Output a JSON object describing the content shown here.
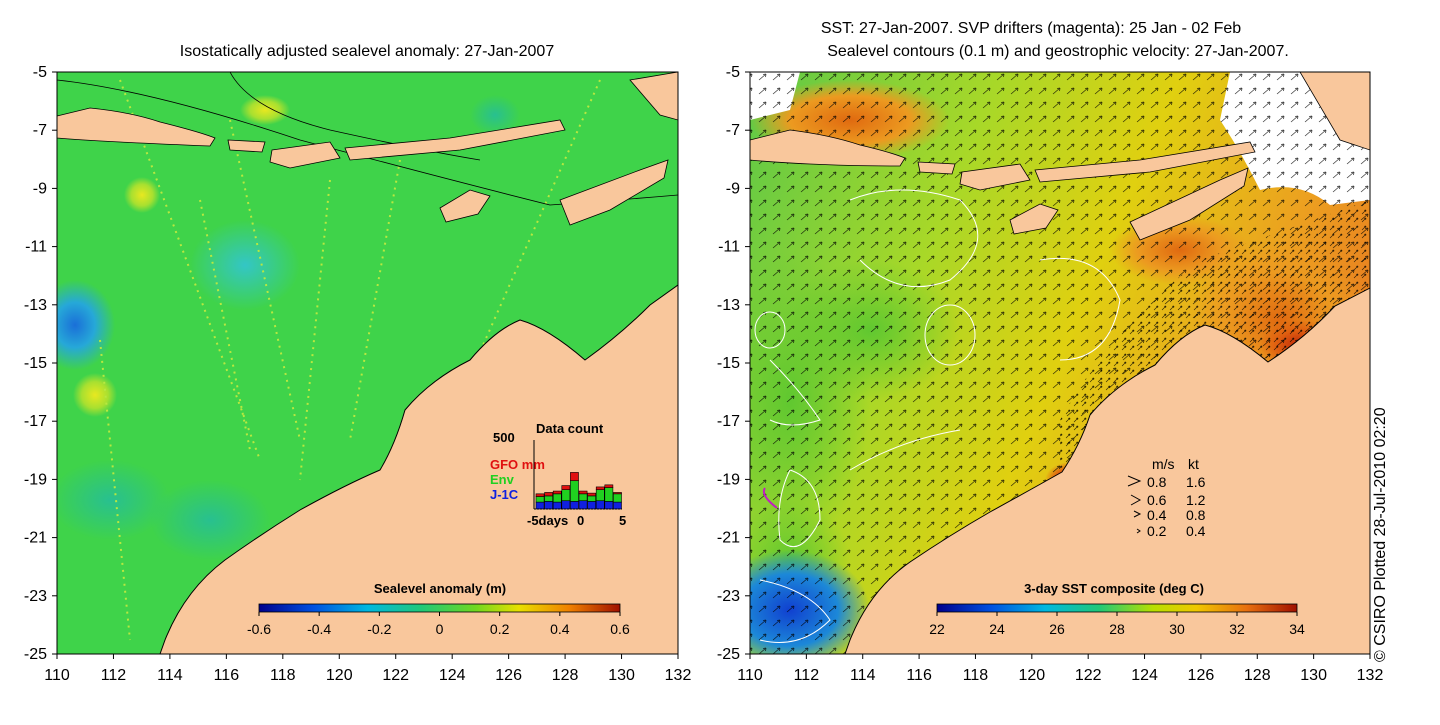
{
  "left_panel": {
    "title": "Isostatically adjusted sealevel anomaly: 27-Jan-2007",
    "y_ticks": [
      "-5",
      "-7",
      "-9",
      "-11",
      "-13",
      "-15",
      "-17",
      "-19",
      "-21",
      "-23",
      "-25"
    ],
    "x_ticks": [
      "110",
      "112",
      "114",
      "116",
      "118",
      "120",
      "122",
      "124",
      "126",
      "128",
      "130",
      "132"
    ],
    "colorbar": {
      "title": "Sealevel anomaly (m)",
      "ticks": [
        "-0.6",
        "-0.4",
        "-0.2",
        "0",
        "0.2",
        "0.4",
        "0.6"
      ],
      "range": [
        -0.6,
        0.6
      ]
    },
    "data_count": {
      "title": "Data count",
      "y_max_label": "500",
      "legend": [
        "GFO mm",
        "Env",
        "J-1C"
      ],
      "x_labels": [
        "-5days",
        "0",
        "5"
      ],
      "bars": [
        {
          "j1c": 50,
          "env": 40,
          "gfo": 20
        },
        {
          "j1c": 55,
          "env": 40,
          "gfo": 25
        },
        {
          "j1c": 50,
          "env": 60,
          "gfo": 20
        },
        {
          "j1c": 60,
          "env": 80,
          "gfo": 30
        },
        {
          "j1c": 55,
          "env": 150,
          "gfo": 60
        },
        {
          "j1c": 60,
          "env": 50,
          "gfo": 20
        },
        {
          "j1c": 55,
          "env": 40,
          "gfo": 20
        },
        {
          "j1c": 60,
          "env": 80,
          "gfo": 20
        },
        {
          "j1c": 55,
          "env": 100,
          "gfo": 20
        },
        {
          "j1c": 50,
          "env": 60,
          "gfo": 10
        }
      ]
    }
  },
  "right_panel": {
    "title_line1": "SST: 27-Jan-2007. SVP drifters (magenta): 25 Jan - 02 Feb",
    "title_line2": "Sealevel contours (0.1 m) and geostrophic velocity: 27-Jan-2007.",
    "y_ticks": [
      "-5",
      "-7",
      "-9",
      "-11",
      "-13",
      "-15",
      "-17",
      "-19",
      "-21",
      "-23",
      "-25"
    ],
    "x_ticks": [
      "110",
      "112",
      "114",
      "116",
      "118",
      "120",
      "122",
      "124",
      "126",
      "128",
      "130",
      "132"
    ],
    "colorbar": {
      "title": "3-day SST composite (deg C)",
      "ticks": [
        "22",
        "24",
        "26",
        "28",
        "30",
        "32",
        "34"
      ],
      "range": [
        22,
        34
      ]
    },
    "velocity_legend": {
      "header_ms": "m/s",
      "header_kt": "kt",
      "rows": [
        {
          "ms": "0.8",
          "kt": "1.6"
        },
        {
          "ms": "0.6",
          "kt": "1.2"
        },
        {
          "ms": "0.4",
          "kt": "0.8"
        },
        {
          "ms": "0.2",
          "kt": "0.4"
        }
      ]
    }
  },
  "credit": "CSIRO Plotted 28-Jul-2010 02:20",
  "credit_symbol": "©",
  "colors": {
    "land": "#f9c79c",
    "ocean_sla": "#3fd34a",
    "gfo": "#e01010",
    "env": "#20d020",
    "j1c": "#1020e0"
  }
}
